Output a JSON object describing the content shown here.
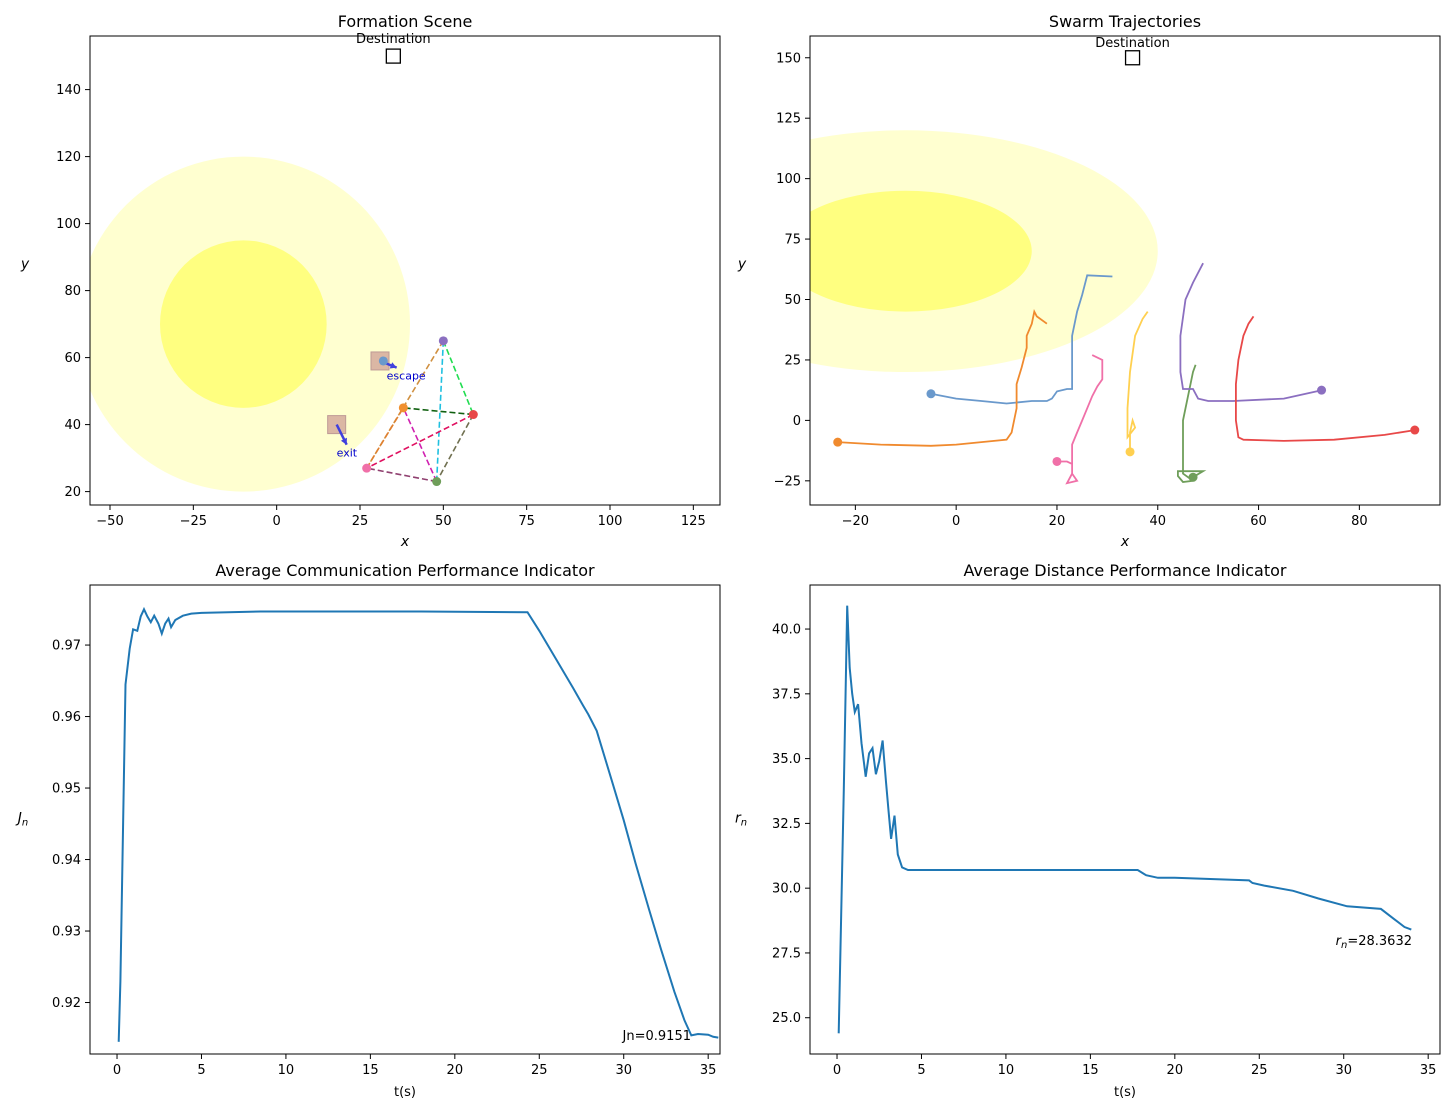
{
  "chart_data": [
    {
      "type": "scatter",
      "title": "Formation Scene",
      "xlabel": "x",
      "ylabel": "y",
      "xlim": [
        -56,
        133
      ],
      "ylim": [
        16,
        156
      ],
      "xticks": [
        -50,
        -25,
        0,
        25,
        50,
        75,
        100,
        125
      ],
      "yticks": [
        20,
        40,
        60,
        80,
        100,
        120,
        140
      ],
      "grid": false,
      "destination": {
        "label": "Destination",
        "x": 35,
        "y": 150
      },
      "zones": [
        {
          "cx": -10,
          "cy": 70,
          "r": 50,
          "color": "#ffffd0"
        },
        {
          "cx": -10,
          "cy": 70,
          "r": 25,
          "color": "#ffff80"
        }
      ],
      "agents": [
        {
          "x": 50,
          "y": 65,
          "color": "#8b6fc0"
        },
        {
          "x": 59,
          "y": 43,
          "color": "#e84848"
        },
        {
          "x": 48,
          "y": 23,
          "color": "#6f9e5a"
        },
        {
          "x": 27,
          "y": 27,
          "color": "#f070a8"
        },
        {
          "x": 38,
          "y": 45,
          "color": "#f09030"
        },
        {
          "x": 32,
          "y": 59,
          "color": "#6a99cc"
        }
      ],
      "links": [
        {
          "from": 0,
          "to": 1,
          "color": "#20dd50"
        },
        {
          "from": 0,
          "to": 2,
          "color": "#20c0e0"
        },
        {
          "from": 0,
          "to": 3,
          "color": "#d09040"
        },
        {
          "from": 1,
          "to": 2,
          "color": "#707050"
        },
        {
          "from": 1,
          "to": 3,
          "color": "#e01060"
        },
        {
          "from": 1,
          "to": 4,
          "color": "#106010"
        },
        {
          "from": 2,
          "to": 3,
          "color": "#904070"
        },
        {
          "from": 2,
          "to": 4,
          "color": "#d020b0"
        },
        {
          "from": 3,
          "to": 4,
          "color": "#e08030"
        }
      ],
      "markers": [
        {
          "label": "escape",
          "x": 31,
          "y": 59,
          "dx": 5,
          "dy": -2
        },
        {
          "label": "exit",
          "x": 18,
          "y": 40,
          "dx": 3,
          "dy": -6
        }
      ]
    },
    {
      "type": "line",
      "title": "Swarm Trajectories",
      "xlabel": "x",
      "ylabel": "y",
      "xlim": [
        -29,
        96
      ],
      "ylim": [
        -35,
        159
      ],
      "xticks": [
        -20,
        0,
        20,
        40,
        60,
        80
      ],
      "yticks": [
        -25,
        0,
        25,
        50,
        75,
        100,
        125,
        150
      ],
      "grid": false,
      "destination": {
        "label": "Destination",
        "x": 35,
        "y": 150
      },
      "zones": [
        {
          "cx": -10,
          "cy": 70,
          "rx": 50,
          "ry": 50,
          "color": "#ffffd0"
        },
        {
          "cx": -10,
          "cy": 70,
          "rx": 25,
          "ry": 25,
          "color": "#ffff80"
        }
      ],
      "series": [
        {
          "color": "#6a99cc",
          "start": [
            -5,
            11
          ],
          "points": [
            [
              -5,
              11
            ],
            [
              0,
              9
            ],
            [
              5,
              8
            ],
            [
              10,
              7
            ],
            [
              15,
              8
            ],
            [
              18,
              8
            ],
            [
              19,
              9
            ],
            [
              20,
              12
            ],
            [
              22,
              13
            ],
            [
              23,
              13
            ],
            [
              23,
              20
            ],
            [
              23,
              35
            ],
            [
              24,
              45
            ],
            [
              25,
              52
            ],
            [
              26,
              60
            ],
            [
              31,
              59.5
            ]
          ]
        },
        {
          "color": "#f08a2e",
          "start": [
            -23.5,
            -9
          ],
          "points": [
            [
              -23.5,
              -9
            ],
            [
              -15,
              -10
            ],
            [
              -5,
              -10.5
            ],
            [
              0,
              -10
            ],
            [
              5,
              -9
            ],
            [
              10,
              -8
            ],
            [
              11,
              -5
            ],
            [
              12,
              5
            ],
            [
              12,
              15
            ],
            [
              13,
              22
            ],
            [
              14,
              30
            ],
            [
              14,
              35
            ],
            [
              15,
              40
            ],
            [
              15.5,
              45
            ],
            [
              16,
              43
            ],
            [
              18,
              40
            ]
          ]
        },
        {
          "color": "#f070a8",
          "start": [
            20,
            -17
          ],
          "points": [
            [
              20,
              -17
            ],
            [
              22,
              -17
            ],
            [
              23,
              -18
            ],
            [
              23,
              -22
            ],
            [
              22,
              -26
            ],
            [
              24,
              -25
            ],
            [
              23,
              -22
            ],
            [
              23,
              -10
            ],
            [
              24,
              -5
            ],
            [
              25,
              0
            ],
            [
              26,
              5
            ],
            [
              27,
              10
            ],
            [
              28,
              14
            ],
            [
              29,
              17
            ],
            [
              29,
              25
            ],
            [
              27,
              27
            ]
          ]
        },
        {
          "color": "#ffd050",
          "start": [
            34.5,
            -13
          ],
          "points": [
            [
              34.5,
              -13
            ],
            [
              34.5,
              -5
            ],
            [
              35,
              0
            ],
            [
              35.5,
              -3
            ],
            [
              34,
              -7
            ],
            [
              34,
              5
            ],
            [
              34.5,
              20
            ],
            [
              35.5,
              35
            ],
            [
              37,
              42
            ],
            [
              38,
              45
            ]
          ]
        },
        {
          "color": "#6f9e5a",
          "start": [
            47,
            -23.5
          ],
          "points": [
            [
              47,
              -23.5
            ],
            [
              49,
              -21
            ],
            [
              44,
              -21
            ],
            [
              44,
              -23
            ],
            [
              45,
              -25.5
            ],
            [
              47,
              -25
            ],
            [
              45,
              -22
            ],
            [
              45,
              -10
            ],
            [
              45,
              0
            ],
            [
              46,
              10
            ],
            [
              47,
              20
            ],
            [
              47.5,
              23
            ]
          ]
        },
        {
          "color": "#8b6fc0",
          "start": [
            72.5,
            12.5
          ],
          "points": [
            [
              72.5,
              12.5
            ],
            [
              65,
              9
            ],
            [
              55,
              8
            ],
            [
              50,
              8
            ],
            [
              48,
              9
            ],
            [
              47,
              13
            ],
            [
              45,
              13
            ],
            [
              44.5,
              20
            ],
            [
              44.5,
              35
            ],
            [
              45.5,
              50
            ],
            [
              47,
              57
            ],
            [
              49,
              65
            ]
          ]
        },
        {
          "color": "#e84848",
          "start": [
            91,
            -4
          ],
          "points": [
            [
              91,
              -4
            ],
            [
              85,
              -6
            ],
            [
              75,
              -8
            ],
            [
              65,
              -8.5
            ],
            [
              57,
              -8
            ],
            [
              56,
              -7
            ],
            [
              55.5,
              0
            ],
            [
              55.5,
              15
            ],
            [
              56,
              25
            ],
            [
              57,
              35
            ],
            [
              58,
              40
            ],
            [
              59,
              43
            ]
          ]
        }
      ]
    },
    {
      "type": "line",
      "title": "Average Communication Performance Indicator",
      "xlabel": "t(s)",
      "ylabel": "J_n",
      "xlim": [
        -1.6,
        35.7
      ],
      "ylim": [
        0.9128,
        0.9784
      ],
      "xticks": [
        0,
        5,
        10,
        15,
        20,
        25,
        30,
        35
      ],
      "yticks": [
        0.92,
        0.93,
        0.94,
        0.95,
        0.96,
        0.97
      ],
      "grid": false,
      "annotation": "Jn=0.9151",
      "series": [
        {
          "name": "",
          "color": "#1f77b4",
          "points": [
            [
              0.1,
              0.9145
            ],
            [
              0.2,
              0.923
            ],
            [
              0.5,
              0.9645
            ],
            [
              0.75,
              0.9695
            ],
            [
              0.95,
              0.9722
            ],
            [
              1.2,
              0.972
            ],
            [
              1.4,
              0.974
            ],
            [
              1.6,
              0.975
            ],
            [
              1.8,
              0.974
            ],
            [
              2.0,
              0.9732
            ],
            [
              2.2,
              0.9741
            ],
            [
              2.45,
              0.973
            ],
            [
              2.65,
              0.9716
            ],
            [
              2.85,
              0.973
            ],
            [
              3.05,
              0.9737
            ],
            [
              3.2,
              0.9725
            ],
            [
              3.45,
              0.9735
            ],
            [
              3.9,
              0.9741
            ],
            [
              4.4,
              0.9744
            ],
            [
              5.0,
              0.9745
            ],
            [
              8.5,
              0.9747
            ],
            [
              18.0,
              0.9747
            ],
            [
              24.3,
              0.9746
            ],
            [
              25.0,
              0.972
            ],
            [
              26.0,
              0.968
            ],
            [
              27.0,
              0.964
            ],
            [
              27.6,
              0.9615
            ],
            [
              27.9,
              0.9603
            ],
            [
              28.4,
              0.958
            ],
            [
              29.3,
              0.951
            ],
            [
              30.0,
              0.9455
            ],
            [
              30.7,
              0.9395
            ],
            [
              31.5,
              0.933
            ],
            [
              32.2,
              0.9275
            ],
            [
              33.0,
              0.9215
            ],
            [
              33.6,
              0.9175
            ],
            [
              34.0,
              0.9154
            ],
            [
              34.4,
              0.9156
            ],
            [
              35.0,
              0.9155
            ],
            [
              35.3,
              0.9152
            ],
            [
              35.6,
              0.9151
            ]
          ]
        }
      ]
    },
    {
      "type": "line",
      "title": "Average Distance Performance Indicator",
      "xlabel": "t(s)",
      "ylabel": "r_n",
      "xlim": [
        -1.6,
        35.7
      ],
      "ylim": [
        23.6,
        41.7
      ],
      "xticks": [
        0,
        5,
        10,
        15,
        20,
        25,
        30,
        35
      ],
      "yticks": [
        25.0,
        27.5,
        30.0,
        32.5,
        35.0,
        37.5,
        40.0
      ],
      "grid": false,
      "annotation": "r_n=28.3632",
      "series": [
        {
          "name": "",
          "color": "#1f77b4",
          "points": [
            [
              0.1,
              24.4
            ],
            [
              0.4,
              33.8
            ],
            [
              0.6,
              40.9
            ],
            [
              0.75,
              38.5
            ],
            [
              0.9,
              37.5
            ],
            [
              1.05,
              36.8
            ],
            [
              1.25,
              37.1
            ],
            [
              1.45,
              35.6
            ],
            [
              1.7,
              34.3
            ],
            [
              1.9,
              35.2
            ],
            [
              2.1,
              35.4
            ],
            [
              2.3,
              34.4
            ],
            [
              2.5,
              34.9
            ],
            [
              2.7,
              35.7
            ],
            [
              2.9,
              34.1
            ],
            [
              3.05,
              33.0
            ],
            [
              3.2,
              31.9
            ],
            [
              3.4,
              32.8
            ],
            [
              3.6,
              31.3
            ],
            [
              3.85,
              30.8
            ],
            [
              4.2,
              30.7
            ],
            [
              5.0,
              30.7
            ],
            [
              10.0,
              30.7
            ],
            [
              17.8,
              30.7
            ],
            [
              18.3,
              30.5
            ],
            [
              19.0,
              30.4
            ],
            [
              20.0,
              30.4
            ],
            [
              24.4,
              30.3
            ],
            [
              24.6,
              30.2
            ],
            [
              25.3,
              30.1
            ],
            [
              27.0,
              29.9
            ],
            [
              28.5,
              29.6
            ],
            [
              30.2,
              29.3
            ],
            [
              32.2,
              29.2
            ],
            [
              33.0,
              28.8
            ],
            [
              33.6,
              28.5
            ],
            [
              34.0,
              28.4
            ]
          ]
        }
      ]
    }
  ],
  "labels": {
    "p1_title": "Formation Scene",
    "p2_title": "Swarm Trajectories",
    "p3_title": "Average Communication Performance Indicator",
    "p4_title": "Average Distance Performance Indicator",
    "dest_label": "Destination",
    "xlabel_xy": "x",
    "ylabel_xy": "y",
    "xlabel_t": "t(s)",
    "escape": "escape",
    "exit": "exit",
    "jn_annot": "Jn=0.9151",
    "rn_annot": "=28.3632"
  }
}
